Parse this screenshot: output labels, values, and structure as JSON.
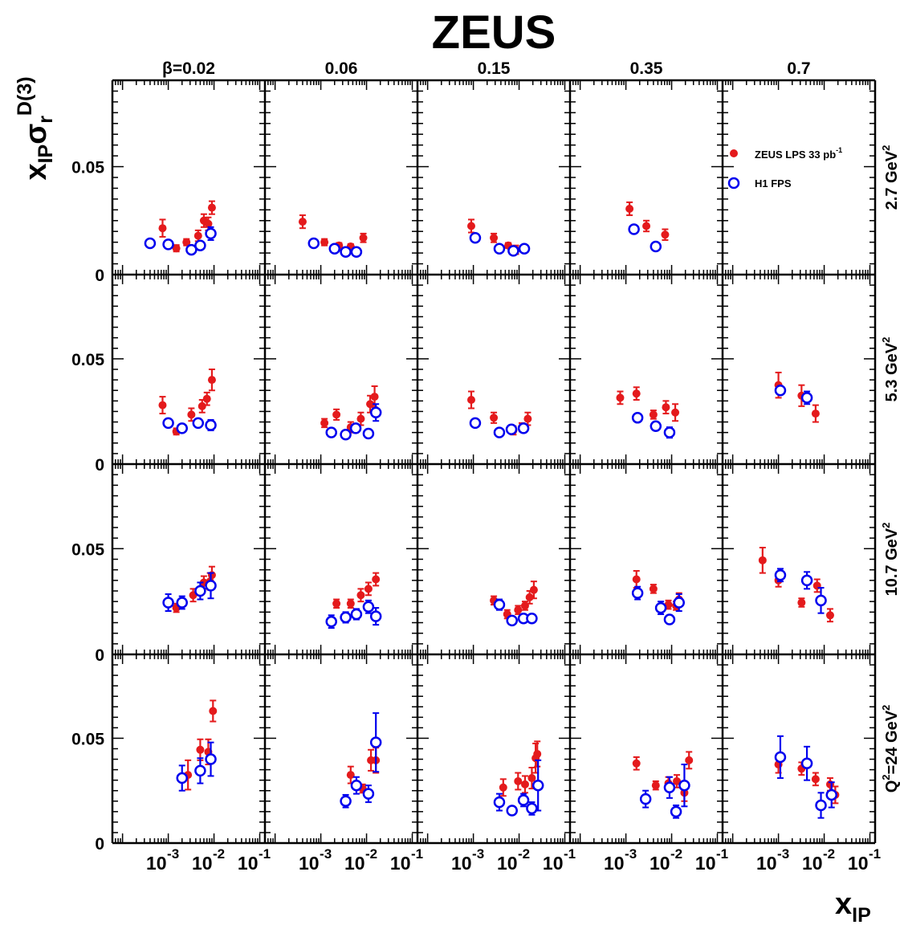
{
  "chart_data": {
    "type": "scatter",
    "title": "ZEUS",
    "ylabel_parts": {
      "x": "x",
      "ip": "IP",
      "sigma": "σ",
      "r": "r",
      "sup": "D(3)"
    },
    "xlabel_parts": {
      "x": "x",
      "sub": "IP"
    },
    "beta_prefix": "β=",
    "beta_values": [
      "0.02",
      "0.06",
      "0.15",
      "0.35",
      "0.7"
    ],
    "q2_labels": [
      "2.7 GeV",
      "5.3 GeV",
      "10.7 GeV",
      "Q=24 GeV"
    ],
    "q2_exponent": "2",
    "x_scale": "log",
    "xlim": [
      6e-05,
      0.13
    ],
    "ylim": [
      0,
      0.09
    ],
    "yticks": [
      0,
      0.05
    ],
    "ytick_labels": [
      "0",
      "0.05"
    ],
    "xtick_labels": [
      {
        "base": "10",
        "exp": "-3"
      },
      {
        "base": "10",
        "exp": "-2"
      },
      {
        "base": "10",
        "exp": "-1"
      }
    ],
    "legend_position": "top-right (row 1, β=0.7 panel)",
    "series": [
      {
        "name": "ZEUS LPS 33 pb",
        "name_sup": "-1",
        "marker": "filled-circle",
        "color": "#e41a1c"
      },
      {
        "name": "H1 FPS",
        "marker": "open-circle",
        "color": "#0000ee"
      }
    ],
    "panels": [
      [
        {
          "zeus": [
            [
              0.00075,
              0.0215,
              0.004
            ],
            [
              0.0015,
              0.0122,
              0.0015
            ],
            [
              0.0025,
              0.015,
              0.0015
            ],
            [
              0.0045,
              0.018,
              0.0025
            ],
            [
              0.006,
              0.025,
              0.003
            ],
            [
              0.0075,
              0.0235,
              0.003
            ],
            [
              0.009,
              0.031,
              0.003
            ]
          ],
          "h1": [
            [
              0.0004,
              0.0145,
              0.001
            ],
            [
              0.001,
              0.014,
              0.001
            ],
            [
              0.0032,
              0.0115,
              0.001
            ],
            [
              0.005,
              0.0135,
              0.001
            ],
            [
              0.0085,
              0.019,
              0.003
            ]
          ]
        },
        {
          "zeus": [
            [
              0.0004,
              0.0245,
              0.003
            ],
            [
              0.0012,
              0.015,
              0.0015
            ],
            [
              0.0025,
              0.0135,
              0.0012
            ],
            [
              0.0045,
              0.013,
              0.0012
            ],
            [
              0.0085,
              0.017,
              0.002
            ]
          ],
          "h1": [
            [
              0.0007,
              0.0145,
              0.001
            ],
            [
              0.002,
              0.012,
              0.001
            ],
            [
              0.0035,
              0.0105,
              0.001
            ],
            [
              0.006,
              0.0105,
              0.001
            ]
          ]
        },
        {
          "zeus": [
            [
              0.0009,
              0.0225,
              0.003
            ],
            [
              0.0028,
              0.017,
              0.002
            ],
            [
              0.0058,
              0.0135,
              0.0012
            ],
            [
              0.0085,
              0.0115,
              0.002
            ]
          ],
          "h1": [
            [
              0.0011,
              0.017,
              0.001
            ],
            [
              0.0037,
              0.012,
              0.001
            ],
            [
              0.0075,
              0.011,
              0.001
            ],
            [
              0.013,
              0.012,
              0.001
            ]
          ]
        },
        {
          "zeus": [
            [
              0.0012,
              0.0305,
              0.003
            ],
            [
              0.0028,
              0.0225,
              0.0025
            ],
            [
              0.0072,
              0.0185,
              0.0025
            ]
          ],
          "h1": [
            [
              0.0015,
              0.021,
              0.0015
            ],
            [
              0.0045,
              0.013,
              0.0012
            ]
          ]
        },
        {
          "zeus": [],
          "h1": []
        }
      ],
      [
        {
          "zeus": [
            [
              0.00075,
              0.028,
              0.004
            ],
            [
              0.0015,
              0.0155,
              0.0015
            ],
            [
              0.0032,
              0.0235,
              0.003
            ],
            [
              0.0055,
              0.0275,
              0.003
            ],
            [
              0.007,
              0.031,
              0.003
            ],
            [
              0.009,
              0.04,
              0.005
            ]
          ],
          "h1": [
            [
              0.001,
              0.0195,
              0.002
            ],
            [
              0.002,
              0.017,
              0.0015
            ],
            [
              0.0045,
              0.0195,
              0.002
            ],
            [
              0.0085,
              0.0185,
              0.0025
            ]
          ]
        },
        {
          "zeus": [
            [
              0.0012,
              0.0195,
              0.002
            ],
            [
              0.0022,
              0.0235,
              0.0025
            ],
            [
              0.0045,
              0.0175,
              0.0025
            ],
            [
              0.0075,
              0.0215,
              0.003
            ],
            [
              0.012,
              0.0285,
              0.004
            ],
            [
              0.015,
              0.032,
              0.005
            ]
          ],
          "h1": [
            [
              0.0017,
              0.015,
              0.002
            ],
            [
              0.0035,
              0.014,
              0.0015
            ],
            [
              0.0058,
              0.017,
              0.002
            ],
            [
              0.011,
              0.0145,
              0.002
            ],
            [
              0.016,
              0.0245,
              0.004
            ]
          ]
        },
        {
          "zeus": [
            [
              0.0009,
              0.0305,
              0.004
            ],
            [
              0.0028,
              0.022,
              0.0025
            ],
            [
              0.0075,
              0.016,
              0.002
            ],
            [
              0.0115,
              0.0175,
              0.002
            ],
            [
              0.0155,
              0.0215,
              0.003
            ]
          ],
          "h1": [
            [
              0.0011,
              0.0195,
              0.0015
            ],
            [
              0.0037,
              0.015,
              0.0015
            ],
            [
              0.0068,
              0.0165,
              0.0015
            ],
            [
              0.0125,
              0.017,
              0.002
            ]
          ]
        },
        {
          "zeus": [
            [
              0.00075,
              0.0315,
              0.003
            ],
            [
              0.0017,
              0.0335,
              0.003
            ],
            [
              0.004,
              0.0235,
              0.002
            ],
            [
              0.0075,
              0.027,
              0.003
            ],
            [
              0.012,
              0.0245,
              0.004
            ]
          ],
          "h1": [
            [
              0.0018,
              0.022,
              0.001
            ],
            [
              0.0045,
              0.018,
              0.002
            ],
            [
              0.009,
              0.015,
              0.0025
            ]
          ]
        },
        {
          "zeus": [
            [
              0.001,
              0.0375,
              0.006
            ],
            [
              0.0032,
              0.0325,
              0.005
            ],
            [
              0.0065,
              0.024,
              0.004
            ]
          ],
          "h1": [
            [
              0.0011,
              0.035,
              0.002
            ],
            [
              0.0042,
              0.0315,
              0.003
            ]
          ]
        }
      ],
      [
        {
          "zeus": [
            [
              0.0015,
              0.022,
              0.002
            ],
            [
              0.0035,
              0.028,
              0.003
            ],
            [
              0.006,
              0.034,
              0.003
            ],
            [
              0.0082,
              0.0345,
              0.004
            ],
            [
              0.009,
              0.0375,
              0.004
            ]
          ],
          "h1": [
            [
              0.001,
              0.0245,
              0.004
            ],
            [
              0.002,
              0.0245,
              0.003
            ],
            [
              0.005,
              0.03,
              0.004
            ],
            [
              0.0085,
              0.0325,
              0.006
            ]
          ]
        },
        {
          "zeus": [
            [
              0.0022,
              0.024,
              0.002
            ],
            [
              0.0045,
              0.024,
              0.002
            ],
            [
              0.0075,
              0.028,
              0.003
            ],
            [
              0.011,
              0.031,
              0.003
            ],
            [
              0.016,
              0.0355,
              0.003
            ]
          ],
          "h1": [
            [
              0.0017,
              0.0155,
              0.003
            ],
            [
              0.0035,
              0.0175,
              0.0025
            ],
            [
              0.006,
              0.019,
              0.0025
            ],
            [
              0.011,
              0.0225,
              0.003
            ],
            [
              0.016,
              0.018,
              0.004
            ]
          ]
        },
        {
          "zeus": [
            [
              0.0028,
              0.0255,
              0.002
            ],
            [
              0.0055,
              0.019,
              0.002
            ],
            [
              0.0095,
              0.021,
              0.002
            ],
            [
              0.0135,
              0.023,
              0.002
            ],
            [
              0.017,
              0.027,
              0.003
            ],
            [
              0.021,
              0.0305,
              0.004
            ]
          ],
          "h1": [
            [
              0.0037,
              0.0235,
              0.0025
            ],
            [
              0.007,
              0.016,
              0.0015
            ],
            [
              0.0125,
              0.017,
              0.002
            ],
            [
              0.019,
              0.017,
              0.002
            ]
          ]
        },
        {
          "zeus": [
            [
              0.0017,
              0.0355,
              0.004
            ],
            [
              0.004,
              0.031,
              0.002
            ],
            [
              0.0085,
              0.0235,
              0.002
            ],
            [
              0.0125,
              0.023,
              0.002
            ],
            [
              0.0145,
              0.026,
              0.003
            ]
          ],
          "h1": [
            [
              0.0018,
              0.029,
              0.003
            ],
            [
              0.0058,
              0.022,
              0.003
            ],
            [
              0.009,
              0.0165,
              0.002
            ],
            [
              0.0145,
              0.0245,
              0.004
            ]
          ]
        },
        {
          "zeus": [
            [
              0.00045,
              0.0445,
              0.006
            ],
            [
              0.001,
              0.035,
              0.003
            ],
            [
              0.0032,
              0.0245,
              0.002
            ],
            [
              0.007,
              0.0325,
              0.003
            ],
            [
              0.0135,
              0.0185,
              0.003
            ]
          ],
          "h1": [
            [
              0.0011,
              0.0375,
              0.003
            ],
            [
              0.0042,
              0.035,
              0.004
            ],
            [
              0.0085,
              0.0255,
              0.006
            ]
          ]
        }
      ],
      [
        {
          "zeus": [
            [
              0.0027,
              0.0325,
              0.007
            ],
            [
              0.005,
              0.0445,
              0.005
            ],
            [
              0.0075,
              0.0435,
              0.006
            ],
            [
              0.0095,
              0.063,
              0.005
            ]
          ],
          "h1": [
            [
              0.002,
              0.031,
              0.006
            ],
            [
              0.005,
              0.0345,
              0.006
            ],
            [
              0.0085,
              0.04,
              0.008
            ]
          ]
        },
        {
          "zeus": [
            [
              0.0045,
              0.0325,
              0.004
            ],
            [
              0.0082,
              0.026,
              0.002
            ],
            [
              0.0125,
              0.0395,
              0.005
            ],
            [
              0.016,
              0.0395,
              0.006
            ]
          ],
          "h1": [
            [
              0.0035,
              0.02,
              0.003
            ],
            [
              0.006,
              0.0275,
              0.004
            ],
            [
              0.011,
              0.0235,
              0.004
            ],
            [
              0.016,
              0.048,
              0.014
            ]
          ]
        },
        {
          "zeus": [
            [
              0.0045,
              0.0265,
              0.004
            ],
            [
              0.0095,
              0.0295,
              0.004
            ],
            [
              0.0135,
              0.028,
              0.004
            ],
            [
              0.019,
              0.031,
              0.005
            ],
            [
              0.023,
              0.0405,
              0.007
            ],
            [
              0.025,
              0.0425,
              0.006
            ]
          ],
          "h1": [
            [
              0.0037,
              0.0195,
              0.004
            ],
            [
              0.007,
              0.0155,
              0.002
            ],
            [
              0.0125,
              0.0205,
              0.003
            ],
            [
              0.019,
              0.0165,
              0.003
            ],
            [
              0.026,
              0.0275,
              0.012
            ]
          ]
        },
        {
          "zeus": [
            [
              0.0017,
              0.038,
              0.003
            ],
            [
              0.0045,
              0.0275,
              0.002
            ],
            [
              0.0085,
              0.0285,
              0.003
            ],
            [
              0.013,
              0.0295,
              0.003
            ],
            [
              0.019,
              0.024,
              0.004
            ],
            [
              0.024,
              0.0395,
              0.004
            ]
          ],
          "h1": [
            [
              0.0027,
              0.021,
              0.004
            ],
            [
              0.009,
              0.0265,
              0.005
            ],
            [
              0.0125,
              0.015,
              0.003
            ],
            [
              0.019,
              0.0275,
              0.01
            ]
          ]
        },
        {
          "zeus": [
            [
              0.001,
              0.0375,
              0.004
            ],
            [
              0.0032,
              0.0355,
              0.003
            ],
            [
              0.0065,
              0.0305,
              0.003
            ],
            [
              0.0135,
              0.028,
              0.003
            ],
            [
              0.0175,
              0.023,
              0.004
            ]
          ],
          "h1": [
            [
              0.0011,
              0.041,
              0.01
            ],
            [
              0.0042,
              0.038,
              0.008
            ],
            [
              0.0085,
              0.018,
              0.006
            ],
            [
              0.0145,
              0.023,
              0.006
            ]
          ]
        }
      ]
    ]
  }
}
